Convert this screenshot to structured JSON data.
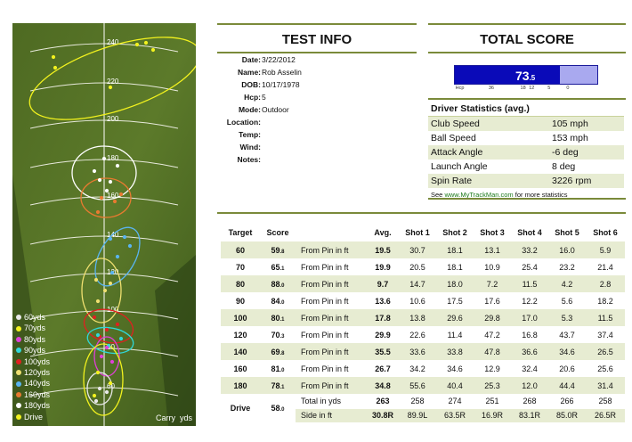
{
  "range": {
    "yard_markers": [
      "240",
      "220",
      "200",
      "180",
      "160",
      "140",
      "120",
      "100",
      "80",
      "60"
    ],
    "legend": [
      {
        "label": "60yds",
        "color": "#e8e8e8"
      },
      {
        "label": "70yds",
        "color": "#f2f21e"
      },
      {
        "label": "80yds",
        "color": "#e040d8"
      },
      {
        "label": "90yds",
        "color": "#30d8d8"
      },
      {
        "label": "100yds",
        "color": "#e02020"
      },
      {
        "label": "120yds",
        "color": "#f0e070"
      },
      {
        "label": "140yds",
        "color": "#5ab4f0"
      },
      {
        "label": "160yds",
        "color": "#e87a30"
      },
      {
        "label": "180yds",
        "color": "#ffffff"
      },
      {
        "label": "Drive",
        "color": "#f2f21e"
      }
    ],
    "carry_label": "Carry",
    "carry_unit": "yds"
  },
  "test_info": {
    "title": "TEST INFO",
    "rows": [
      {
        "label": "Date:",
        "value": "3/22/2012"
      },
      {
        "label": "Name:",
        "value": "Rob Asselin"
      },
      {
        "label": "DOB:",
        "value": "10/17/1978"
      },
      {
        "label": "Hcp:",
        "value": "5"
      },
      {
        "label": "Mode:",
        "value": "Outdoor"
      },
      {
        "label": "Location:",
        "value": ""
      },
      {
        "label": "Temp:",
        "value": ""
      },
      {
        "label": "Wind:",
        "value": ""
      },
      {
        "label": "Notes:",
        "value": ""
      }
    ]
  },
  "total_score": {
    "title": "TOTAL SCORE",
    "value": "73",
    "decimal": ".5",
    "fill_fraction": 0.74,
    "ticks": [
      {
        "label": "Hcp",
        "pos": 0.01
      },
      {
        "label": "36",
        "pos": 0.24
      },
      {
        "label": "18",
        "pos": 0.46
      },
      {
        "label": "12",
        "pos": 0.52
      },
      {
        "label": "5",
        "pos": 0.65
      },
      {
        "label": "0",
        "pos": 0.78
      }
    ]
  },
  "driver_stats": {
    "title": "Driver Statistics (avg.)",
    "rows": [
      {
        "label": "Club Speed",
        "value": "105 mph"
      },
      {
        "label": "Ball Speed",
        "value": "153 mph"
      },
      {
        "label": "Attack Angle",
        "value": "-6 deg"
      },
      {
        "label": "Launch Angle",
        "value": "8 deg"
      },
      {
        "label": "Spin Rate",
        "value": "3226 rpm"
      }
    ],
    "note_prefix": "See ",
    "note_link": "www.MyTrackMan.com",
    "note_suffix": " for more statistics"
  },
  "results": {
    "headers": [
      "Target",
      "Score",
      "",
      "Avg.",
      "Shot 1",
      "Shot 2",
      "Shot 3",
      "Shot 4",
      "Shot 5",
      "Shot 6"
    ],
    "rows": [
      {
        "target": "60",
        "score": "59",
        "dec": ".8",
        "metric": "From Pin in ft",
        "avg": "19.5",
        "shots": [
          "30.7",
          "18.1",
          "13.1",
          "33.2",
          "16.0",
          "5.9"
        ]
      },
      {
        "target": "70",
        "score": "65",
        "dec": ".1",
        "metric": "From Pin in ft",
        "avg": "19.9",
        "shots": [
          "20.5",
          "18.1",
          "10.9",
          "25.4",
          "23.2",
          "21.4"
        ]
      },
      {
        "target": "80",
        "score": "88",
        "dec": ".0",
        "metric": "From Pin in ft",
        "avg": "9.7",
        "shots": [
          "14.7",
          "18.0",
          "7.2",
          "11.5",
          "4.2",
          "2.8"
        ]
      },
      {
        "target": "90",
        "score": "84",
        "dec": ".0",
        "metric": "From Pin in ft",
        "avg": "13.6",
        "shots": [
          "10.6",
          "17.5",
          "17.6",
          "12.2",
          "5.6",
          "18.2"
        ]
      },
      {
        "target": "100",
        "score": "80",
        "dec": ".1",
        "metric": "From Pin in ft",
        "avg": "17.8",
        "shots": [
          "13.8",
          "29.6",
          "29.8",
          "17.0",
          "5.3",
          "11.5"
        ]
      },
      {
        "target": "120",
        "score": "70",
        "dec": ".3",
        "metric": "From Pin in ft",
        "avg": "29.9",
        "shots": [
          "22.6",
          "11.4",
          "47.2",
          "16.8",
          "43.7",
          "37.4"
        ]
      },
      {
        "target": "140",
        "score": "69",
        "dec": ".8",
        "metric": "From Pin in ft",
        "avg": "35.5",
        "shots": [
          "33.6",
          "33.8",
          "47.8",
          "36.6",
          "34.6",
          "26.5"
        ]
      },
      {
        "target": "160",
        "score": "81",
        "dec": ".0",
        "metric": "From Pin in ft",
        "avg": "26.7",
        "shots": [
          "34.2",
          "34.6",
          "12.9",
          "32.4",
          "20.6",
          "25.6"
        ]
      },
      {
        "target": "180",
        "score": "78",
        "dec": ".1",
        "metric": "From Pin in ft",
        "avg": "34.8",
        "shots": [
          "55.6",
          "40.4",
          "25.3",
          "12.0",
          "44.4",
          "31.4"
        ]
      }
    ],
    "drive": {
      "target": "Drive",
      "score": "58",
      "dec": ".0",
      "total_metric": "Total in yds",
      "total_avg": "263",
      "total_shots": [
        "258",
        "274",
        "251",
        "268",
        "266",
        "258"
      ],
      "side_metric": "Side in ft",
      "side_avg": "30.8R",
      "side_shots": [
        "89.9L",
        "63.5R",
        "16.9R",
        "83.1R",
        "85.0R",
        "26.5R"
      ]
    }
  }
}
